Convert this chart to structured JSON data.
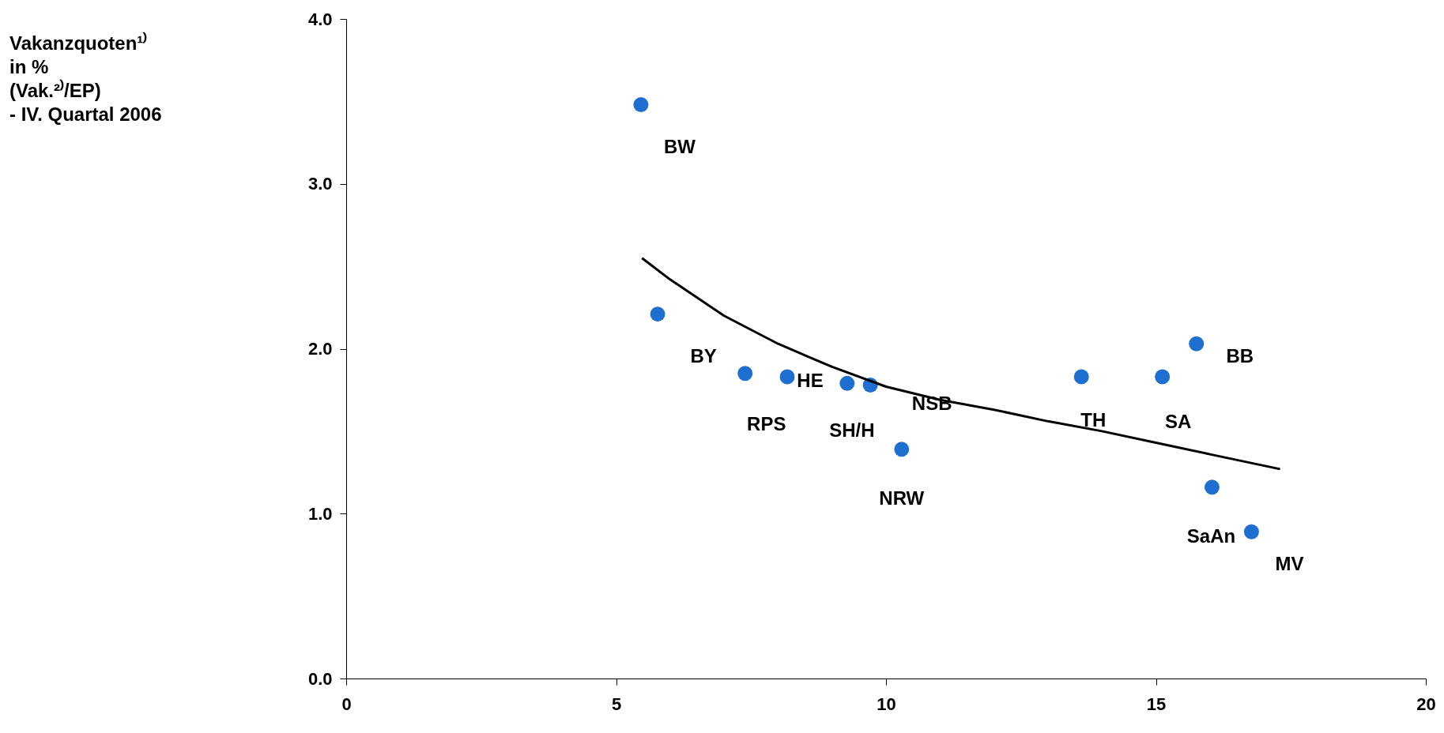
{
  "chart_data": {
    "type": "scatter",
    "xlim": [
      0,
      20
    ],
    "xticks": [
      0,
      5,
      10,
      15,
      20
    ],
    "ylim": [
      0,
      4
    ],
    "yticks": [
      {
        "value": 0,
        "label": "0.0"
      },
      {
        "value": 1,
        "label": "1.0"
      },
      {
        "value": 2,
        "label": "2.0"
      },
      {
        "value": 3,
        "label": "3.0"
      },
      {
        "value": 4,
        "label": "4.0"
      }
    ],
    "grid": false,
    "series": [
      {
        "color": "#1f6fd1",
        "marker": "circle",
        "x": [
          5.46,
          5.77,
          7.39,
          8.17,
          9.28,
          9.71,
          10.29,
          13.62,
          15.12,
          15.75,
          16.04,
          16.77
        ],
        "values": [
          3.48,
          2.21,
          1.85,
          1.83,
          1.79,
          1.78,
          1.39,
          1.83,
          1.83,
          2.03,
          1.16,
          0.89
        ]
      },
      {
        "type": "line",
        "color": "#000000",
        "line_style": "solid",
        "x": [
          5.48,
          6.0,
          7.0,
          8.0,
          9.0,
          10.0,
          11.0,
          12.0,
          13.0,
          14.0,
          15.0,
          16.0,
          17.3
        ],
        "values": [
          2.55,
          2.42,
          2.2,
          2.03,
          1.89,
          1.77,
          1.69,
          1.63,
          1.56,
          1.5,
          1.43,
          1.36,
          1.27
        ]
      }
    ],
    "annotations": [
      "Vakanzquoten¹⁾\nin %\n(Vak.²⁾/EP)\n- IV. Quartal 2006",
      {
        "text": "BW",
        "x": 5.46,
        "y": 3.48
      },
      {
        "text": "BY",
        "x": 5.77,
        "y": 2.21
      },
      {
        "text": "RPS",
        "x": 7.39,
        "y": 1.85
      },
      {
        "text": "HE",
        "x": 8.17,
        "y": 1.83
      },
      {
        "text": "SH/H",
        "x": 9.28,
        "y": 1.79
      },
      {
        "text": "NSB",
        "x": 9.71,
        "y": 1.78
      },
      {
        "text": "NRW",
        "x": 10.29,
        "y": 1.39
      },
      {
        "text": "TH",
        "x": 13.62,
        "y": 1.83
      },
      {
        "text": "SA",
        "x": 15.12,
        "y": 1.83
      },
      {
        "text": "BB",
        "x": 15.75,
        "y": 2.03
      },
      {
        "text": "SaAn",
        "x": 16.04,
        "y": 1.16
      },
      {
        "text": "MV",
        "x": 16.77,
        "y": 0.89
      }
    ]
  }
}
